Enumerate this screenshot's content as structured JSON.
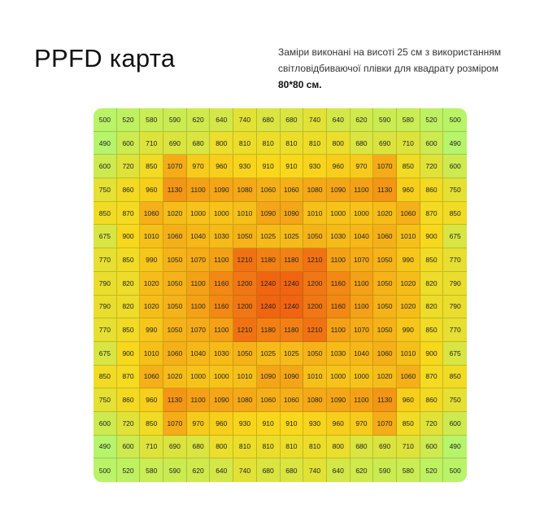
{
  "header": {
    "title": "PPFD карта",
    "description": "Заміри виконані на висоті 25 см з використанням світловідбиваючої плівки для квадрату розміром",
    "description_bold": "80*80 см."
  },
  "chart_data": {
    "type": "heatmap",
    "title": "PPFD карта",
    "colors": {
      "low": "#b6f46c",
      "mid": "#f8d81c",
      "high": "#f06412"
    },
    "values": [
      [
        500,
        520,
        580,
        590,
        620,
        640,
        740,
        680,
        680,
        740,
        640,
        620,
        590,
        580,
        520,
        500
      ],
      [
        490,
        600,
        710,
        690,
        680,
        800,
        810,
        810,
        810,
        810,
        800,
        680,
        690,
        710,
        600,
        490
      ],
      [
        600,
        720,
        850,
        1070,
        970,
        960,
        930,
        910,
        910,
        930,
        960,
        970,
        1070,
        850,
        720,
        600
      ],
      [
        750,
        860,
        960,
        1130,
        1100,
        1090,
        1080,
        1060,
        1060,
        1080,
        1090,
        1100,
        1130,
        960,
        860,
        750
      ],
      [
        850,
        870,
        1060,
        1020,
        1000,
        1000,
        1010,
        1090,
        1090,
        1010,
        1000,
        1000,
        1020,
        1060,
        870,
        850
      ],
      [
        675,
        900,
        1010,
        1060,
        1040,
        1030,
        1050,
        1025,
        1025,
        1050,
        1030,
        1040,
        1060,
        1010,
        900,
        675
      ],
      [
        770,
        850,
        990,
        1050,
        1070,
        1100,
        1210,
        1180,
        1180,
        1210,
        1100,
        1070,
        1050,
        990,
        850,
        770
      ],
      [
        790,
        820,
        1020,
        1050,
        1100,
        1160,
        1200,
        1240,
        1240,
        1200,
        1160,
        1100,
        1050,
        1020,
        820,
        790
      ],
      [
        790,
        820,
        1020,
        1050,
        1100,
        1160,
        1200,
        1240,
        1240,
        1200,
        1160,
        1100,
        1050,
        1020,
        820,
        790
      ],
      [
        770,
        850,
        990,
        1050,
        1070,
        1100,
        1210,
        1180,
        1180,
        1210,
        1100,
        1070,
        1050,
        990,
        850,
        770
      ],
      [
        675,
        900,
        1010,
        1060,
        1040,
        1030,
        1050,
        1025,
        1025,
        1050,
        1030,
        1040,
        1060,
        1010,
        900,
        675
      ],
      [
        850,
        870,
        1060,
        1020,
        1000,
        1000,
        1010,
        1090,
        1090,
        1010,
        1000,
        1000,
        1020,
        1060,
        870,
        850
      ],
      [
        750,
        860,
        960,
        1130,
        1100,
        1090,
        1080,
        1060,
        1060,
        1080,
        1090,
        1100,
        1130,
        960,
        860,
        750
      ],
      [
        600,
        720,
        850,
        1070,
        970,
        960,
        930,
        910,
        910,
        930,
        960,
        970,
        1070,
        850,
        720,
        600
      ],
      [
        490,
        600,
        710,
        690,
        680,
        800,
        810,
        810,
        810,
        810,
        800,
        680,
        690,
        710,
        600,
        490
      ],
      [
        500,
        520,
        580,
        590,
        620,
        640,
        740,
        680,
        680,
        740,
        640,
        620,
        590,
        580,
        520,
        500
      ]
    ]
  }
}
